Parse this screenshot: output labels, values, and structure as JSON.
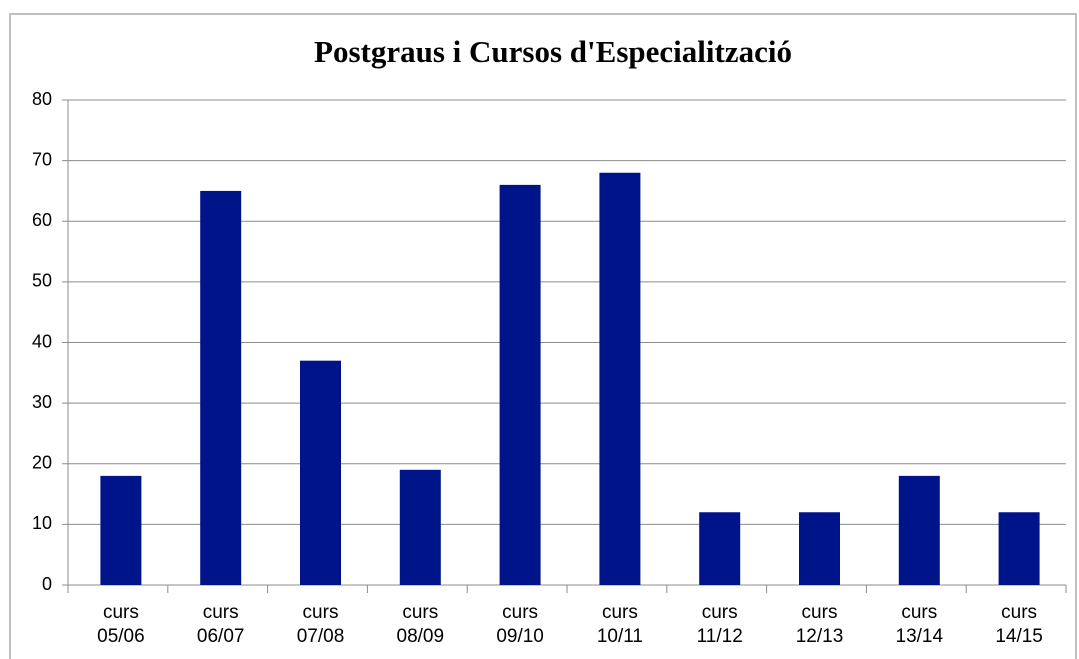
{
  "chart_data": {
    "type": "bar",
    "title": "Postgraus i Cursos d'Especialització",
    "categories": [
      "curs 05/06",
      "curs 06/07",
      "curs 07/08",
      "curs 08/09",
      "curs 09/10",
      "curs 10/11",
      "curs 11/12",
      "curs 12/13",
      "curs 13/14",
      "curs 14/15"
    ],
    "values": [
      18,
      65,
      37,
      19,
      66,
      68,
      12,
      12,
      18,
      12
    ],
    "color": "#00148a",
    "ylim": [
      0,
      80
    ],
    "yticks": [
      0,
      10,
      20,
      30,
      40,
      50,
      60,
      70,
      80
    ],
    "grid": true
  }
}
